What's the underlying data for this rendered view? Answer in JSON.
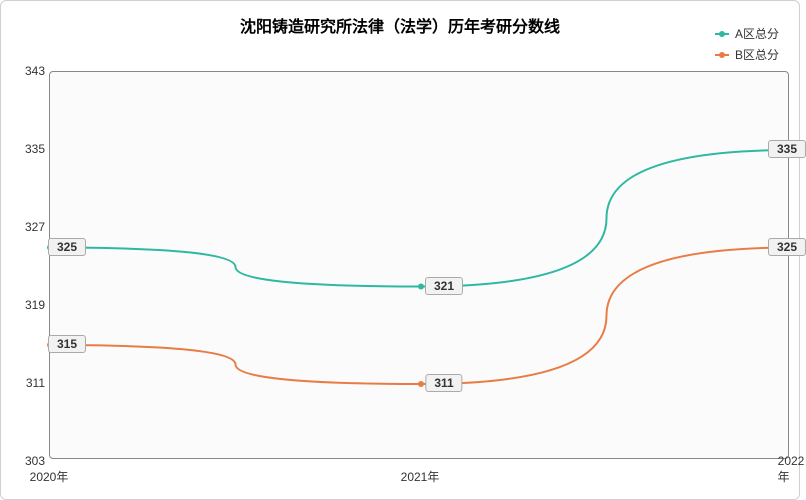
{
  "chart": {
    "type": "line",
    "title": "沈阳铸造研究所法律（法学）历年考研分数线",
    "title_fontsize": 16,
    "background_color": "#ffffff",
    "plot_background_color": "#fbfbfb",
    "border_color": "#888888",
    "border_radius": 4,
    "x": {
      "categories": [
        "2020年",
        "2021年",
        "2022年"
      ],
      "label_fontsize": 12,
      "label_color": "#333333"
    },
    "y": {
      "min": 303,
      "max": 343,
      "tick_step": 8,
      "ticks": [
        303,
        311,
        319,
        327,
        335,
        343
      ],
      "label_fontsize": 12,
      "label_color": "#333333"
    },
    "legend": {
      "position": "top-right",
      "items": [
        {
          "label": "A区总分",
          "color": "#2fb8a0"
        },
        {
          "label": "B区总分",
          "color": "#e87c44"
        }
      ],
      "fontsize": 12
    },
    "series": [
      {
        "name": "A区总分",
        "color": "#2fb8a0",
        "line_width": 2,
        "smooth": true,
        "marker": "circle",
        "marker_size": 6,
        "values": [
          325,
          321,
          335
        ],
        "data_label_bg": "#f2f2f2",
        "data_label_border": "#aaaaaa"
      },
      {
        "name": "B区总分",
        "color": "#e87c44",
        "line_width": 2,
        "smooth": true,
        "marker": "circle",
        "marker_size": 6,
        "values": [
          315,
          311,
          325
        ],
        "data_label_bg": "#f2f2f2",
        "data_label_border": "#aaaaaa"
      }
    ]
  }
}
